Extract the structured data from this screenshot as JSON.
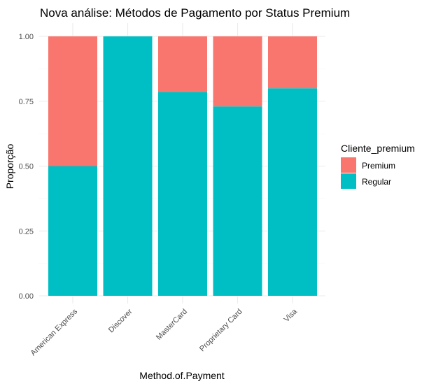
{
  "colors": {
    "premium": "#F8766D",
    "regular": "#00BFC4",
    "grid_major": "#ebebeb",
    "grid_minor": "#f5f5f5"
  },
  "chart_data": {
    "type": "bar",
    "stacked": true,
    "title": "Nova análise: Métodos de Pagamento por Status Premium",
    "xlabel": "Method.of.Payment",
    "ylabel": "Proporção",
    "ylim": [
      0,
      1
    ],
    "yticks": [
      "0.00",
      "0.25",
      "0.50",
      "0.75",
      "1.00"
    ],
    "categories": [
      "American Express",
      "Discover",
      "MasterCard",
      "Proprietary Card",
      "Visa"
    ],
    "series": [
      {
        "name": "Regular",
        "values": [
          0.5,
          1.0,
          0.786,
          0.73,
          0.8
        ]
      },
      {
        "name": "Premium",
        "values": [
          0.5,
          0.0,
          0.214,
          0.27,
          0.2
        ]
      }
    ],
    "legend": {
      "title": "Cliente_premium",
      "entries": [
        "Premium",
        "Regular"
      ],
      "position": "right"
    },
    "grid": true
  }
}
